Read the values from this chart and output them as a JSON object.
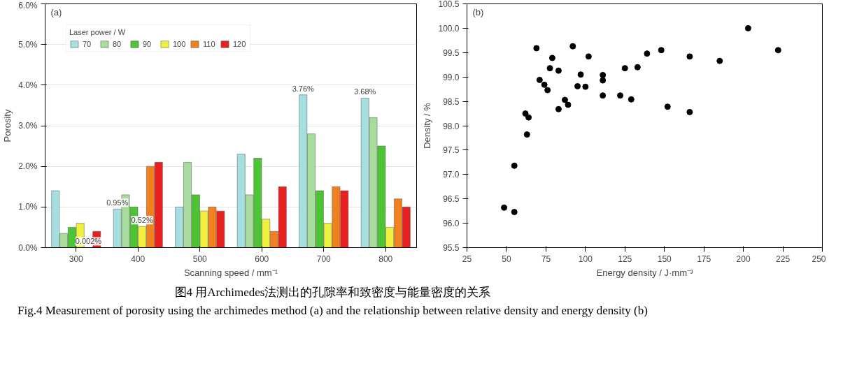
{
  "chart_data": [
    {
      "type": "bar",
      "title": "(a)",
      "xlabel": "Scanning speed / mm⁻¹",
      "ylabel": "Porosity",
      "legend_title": "Laser power / W",
      "legend": "top left",
      "grid": "y",
      "categories": [
        "300",
        "400",
        "500",
        "600",
        "700",
        "800"
      ],
      "ylim": [
        0,
        6
      ],
      "yticks": [
        {
          "value": 0,
          "label": "0.0%"
        },
        {
          "value": 1,
          "label": "1.0%"
        },
        {
          "value": 2,
          "label": "2.0%"
        },
        {
          "value": 3,
          "label": "3.0%"
        },
        {
          "value": 4,
          "label": "4.0%"
        },
        {
          "value": 5,
          "label": "5.0%"
        },
        {
          "value": 6,
          "label": "6.0%"
        }
      ],
      "series": [
        {
          "name": "70",
          "color": "#a6dfe0",
          "values": [
            1.4,
            0.95,
            1.0,
            2.3,
            3.76,
            3.68
          ],
          "value_labels": [
            null,
            "0.95%",
            null,
            null,
            "3.76%",
            "3.68%"
          ]
        },
        {
          "name": "80",
          "color": "#a8dc9c",
          "values": [
            0.35,
            1.3,
            2.1,
            1.3,
            2.8,
            3.2
          ]
        },
        {
          "name": "90",
          "color": "#4cc434",
          "values": [
            0.5,
            1.0,
            1.3,
            2.2,
            1.4,
            2.5
          ]
        },
        {
          "name": "100",
          "color": "#f0f040",
          "values": [
            0.6,
            0.52,
            0.9,
            0.7,
            0.6,
            0.5
          ],
          "value_labels": [
            null,
            "0.52%",
            null,
            null,
            null,
            null
          ]
        },
        {
          "name": "110",
          "color": "#f08020",
          "values": [
            0.002,
            2.0,
            1.0,
            0.4,
            1.5,
            1.2
          ],
          "value_labels": [
            "0.002%",
            null,
            null,
            null,
            null,
            null
          ]
        },
        {
          "name": "120",
          "color": "#e82020",
          "values": [
            0.4,
            2.1,
            0.9,
            1.5,
            1.4,
            1.0
          ]
        }
      ],
      "annotations": [
        "图4 用Archimedes法测出的孔隙率和致密度与能量密度的关系",
        "Fig.4 Measurement of porosity using the archimedes method (a) and the relationship between relative density and energy density (b)"
      ]
    },
    {
      "type": "scatter",
      "title": "(b)",
      "xlabel": "Energy density / J·mm⁻³",
      "ylabel": "Density / %",
      "marker": "circle",
      "grid": false,
      "xlim": [
        25,
        250
      ],
      "xticks": [
        25,
        50,
        75,
        100,
        125,
        150,
        175,
        200,
        225,
        250
      ],
      "ylim": [
        95.5,
        100.5
      ],
      "yticks": [
        {
          "value": 95.5,
          "label": "95.5"
        },
        {
          "value": 96,
          "label": "96.0"
        },
        {
          "value": 96.5,
          "label": "96.5"
        },
        {
          "value": 97,
          "label": "97.0"
        },
        {
          "value": 97.5,
          "label": "97.5"
        },
        {
          "value": 98,
          "label": "98.0"
        },
        {
          "value": 98.5,
          "label": "98.5"
        },
        {
          "value": 99,
          "label": "99.0"
        },
        {
          "value": 99.5,
          "label": "99.5"
        },
        {
          "value": 100,
          "label": "100.0"
        },
        {
          "value": 100.5,
          "label": "100.5"
        }
      ],
      "series": [
        {
          "color": "#000000",
          "x": [
            48.5,
            55,
            55,
            62,
            64,
            63,
            69,
            71,
            74,
            76,
            77.5,
            79,
            83,
            83,
            87,
            89,
            92,
            95,
            97,
            100,
            102,
            111,
            111,
            111,
            122,
            125,
            129,
            133,
            139,
            148,
            152,
            166,
            166,
            185,
            203,
            222
          ],
          "values": [
            96.32,
            96.23,
            97.18,
            98.25,
            98.17,
            97.82,
            99.59,
            98.94,
            98.84,
            98.73,
            99.18,
            99.39,
            99.13,
            98.34,
            98.53,
            98.43,
            99.63,
            98.81,
            99.05,
            98.8,
            99.42,
            99.04,
            98.93,
            98.62,
            98.62,
            99.18,
            98.54,
            99.2,
            99.48,
            99.55,
            98.39,
            99.42,
            98.28,
            99.33,
            100.0,
            99.55
          ]
        }
      ]
    }
  ]
}
